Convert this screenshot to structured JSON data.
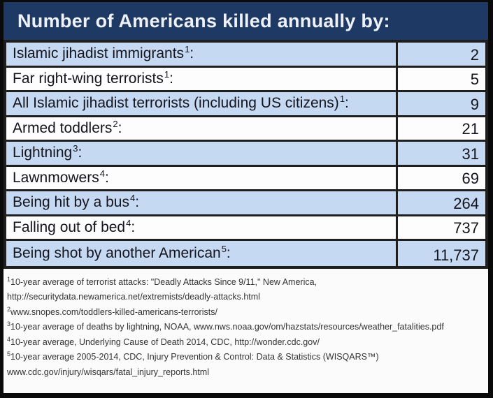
{
  "title": "Number of Americans killed annually by:",
  "table": {
    "colon": ":",
    "rows": [
      {
        "label": "Islamic jihadist immigrants",
        "sup": "1",
        "value": "2"
      },
      {
        "label": "Far right-wing terrorists",
        "sup": "1",
        "value": "5"
      },
      {
        "label": "All Islamic jihadist terrorists (including US citizens)",
        "sup": "1",
        "value": "9"
      },
      {
        "label": "Armed toddlers",
        "sup": "2",
        "value": "21"
      },
      {
        "label": "Lightning",
        "sup": "3",
        "value": "31"
      },
      {
        "label": "Lawnmowers",
        "sup": "4",
        "value": "69"
      },
      {
        "label": "Being hit by a bus",
        "sup": "4",
        "value": "264"
      },
      {
        "label": "Falling out of bed",
        "sup": "4",
        "value": "737"
      },
      {
        "label": "Being shot by another American",
        "sup": "5",
        "value": "11,737"
      }
    ]
  },
  "footnotes": [
    {
      "sup": "1",
      "text": "10-year average of terrorist attacks: \"Deadly Attacks Since 9/11,\" New America,"
    },
    {
      "sup": "",
      "text": "http://securitydata.newamerica.net/extremists/deadly-attacks.html"
    },
    {
      "sup": "2",
      "text": "www.snopes.com/toddlers-killed-americans-terrorists/"
    },
    {
      "sup": "3",
      "text": "10-year average of deaths by lightning, NOAA, www.nws.noaa.gov/om/hazstats/resources/weather_fatalities.pdf"
    },
    {
      "sup": "4",
      "text": "10-year average, Underlying Cause of Death 2014, CDC, http://wonder.cdc.gov/"
    },
    {
      "sup": "5",
      "text": "10-year average 2005-2014, CDC, Injury Prevention & Control: Data & Statistics (WISQARS™)"
    },
    {
      "sup": "",
      "text": "www.cdc.gov/injury/wisqars/fatal_injury_reports.html"
    }
  ],
  "colors": {
    "header_bg": "#1e3a64",
    "header_text": "#eef1f7",
    "row_blue": "#c6d9f2",
    "row_white": "#fdfdfd",
    "border": "#1f1f1f",
    "frame": "#0a0a0a",
    "text": "#14141d"
  },
  "chart_data": {
    "type": "table",
    "title": "Number of Americans killed annually by:",
    "categories": [
      "Islamic jihadist immigrants",
      "Far right-wing terrorists",
      "All Islamic jihadist terrorists (including US citizens)",
      "Armed toddlers",
      "Lightning",
      "Lawnmowers",
      "Being hit by a bus",
      "Falling out of bed",
      "Being shot by another American"
    ],
    "values": [
      2,
      5,
      9,
      21,
      31,
      69,
      264,
      737,
      11737
    ],
    "footnote_sources": [
      "New America: Deadly Attacks Since 9/11",
      "securitydata.newamerica.net",
      "snopes.com",
      "NOAA weather fatalities",
      "CDC Underlying Cause of Death 2014",
      "CDC WISQARS 2005-2014"
    ]
  }
}
